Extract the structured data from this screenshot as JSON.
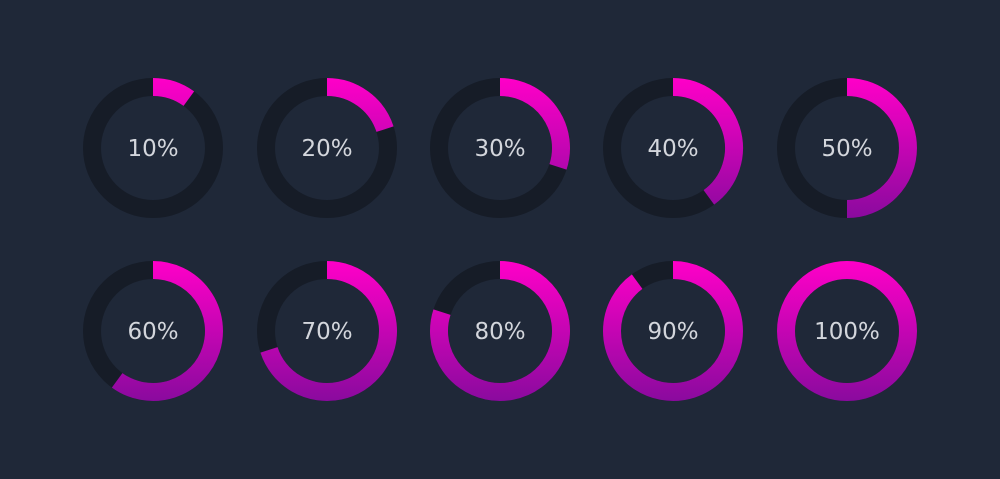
{
  "chart_data": {
    "type": "progress-ring",
    "values": [
      10,
      20,
      30,
      40,
      50,
      60,
      70,
      80,
      90,
      100
    ],
    "value_labels": [
      "10%",
      "20%",
      "30%",
      "40%",
      "50%",
      "60%",
      "70%",
      "80%",
      "90%",
      "100%"
    ],
    "ylim": [
      0,
      100
    ],
    "color": [
      "#ff00c8",
      "#8a0a9e"
    ],
    "track_color": "#161c27"
  }
}
